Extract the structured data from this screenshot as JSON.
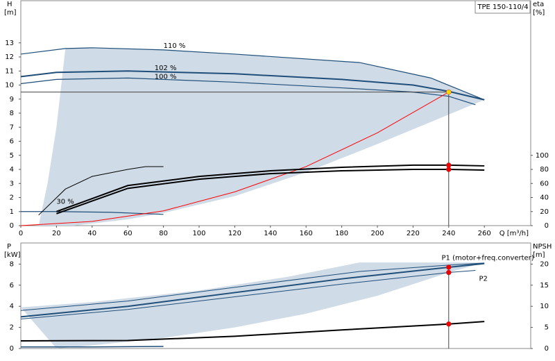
{
  "chart_data": [
    {
      "type": "line",
      "title": "TPE 150-110/4",
      "xlabel": "Q [m³/h]",
      "ylabel": "H",
      "yunit": "[m]",
      "y2label": "eta",
      "y2unit": "[%]",
      "xlim": [
        0,
        286
      ],
      "ylim": [
        0,
        16
      ],
      "y2lim": [
        0,
        320
      ],
      "xticks": [
        0,
        20,
        40,
        60,
        80,
        100,
        120,
        140,
        160,
        180,
        200,
        220,
        240,
        260
      ],
      "yticks": [
        0,
        1,
        2,
        3,
        4,
        5,
        6,
        7,
        8,
        9,
        10,
        11,
        12,
        13
      ],
      "y2ticks": [
        0,
        20,
        40,
        60,
        80,
        100
      ],
      "grid": false,
      "series": [
        {
          "kind": "area",
          "color": "#cad7e4",
          "x": [
            25,
            40,
            80,
            120,
            190,
            230,
            260,
            240,
            200,
            160,
            120,
            80,
            60,
            40,
            30,
            10,
            15,
            20
          ],
          "values": [
            12.6,
            12.65,
            12.5,
            12.2,
            11.6,
            10.5,
            8.95,
            7.9,
            5.8,
            3.8,
            2.1,
            0.9,
            0.45,
            0.15,
            0,
            0,
            3,
            7
          ]
        },
        {
          "kind": "line",
          "color": "#1f4e79",
          "width": 1.2,
          "x": [
            0,
            25,
            40,
            80,
            120,
            190,
            230,
            260
          ],
          "values": [
            12.2,
            12.6,
            12.65,
            12.5,
            12.2,
            11.6,
            10.5,
            8.95
          ]
        },
        {
          "kind": "line",
          "color": "#1f4e79",
          "width": 2,
          "x": [
            0,
            20,
            60,
            120,
            180,
            220,
            240,
            260
          ],
          "values": [
            10.6,
            10.9,
            11.0,
            10.8,
            10.4,
            10.0,
            9.55,
            8.95
          ]
        },
        {
          "kind": "line",
          "color": "#1f4e79",
          "width": 1.2,
          "x": [
            0,
            20,
            60,
            120,
            180,
            220,
            240,
            255
          ],
          "values": [
            10.1,
            10.4,
            10.5,
            10.2,
            9.8,
            9.5,
            9.2,
            8.6
          ]
        },
        {
          "kind": "line",
          "color": "#1f4e79",
          "width": 1.2,
          "x": [
            0,
            20,
            50,
            80
          ],
          "values": [
            1.0,
            1.0,
            0.95,
            0.8
          ]
        },
        {
          "kind": "line",
          "color": "#444444",
          "width": 1,
          "x": [
            0,
            240,
            240
          ],
          "values": [
            9.5,
            9.5,
            0
          ]
        },
        {
          "kind": "line",
          "color": "#ff0000",
          "width": 1,
          "x": [
            0,
            40,
            80,
            120,
            160,
            200,
            240
          ],
          "values": [
            0,
            0.3,
            1.05,
            2.4,
            4.2,
            6.6,
            9.5
          ]
        },
        {
          "kind": "line",
          "axis": "y2",
          "color": "#000000",
          "width": 1,
          "x": [
            10,
            25,
            40,
            60,
            70,
            80
          ],
          "values": [
            15,
            52,
            70,
            80,
            84,
            84
          ]
        },
        {
          "kind": "line",
          "axis": "y2",
          "color": "#000000",
          "width": 2,
          "x": [
            20,
            60,
            100,
            140,
            180,
            220,
            240,
            260
          ],
          "values": [
            20,
            57,
            70,
            78,
            83,
            86,
            86,
            85
          ]
        },
        {
          "kind": "line",
          "axis": "y2",
          "color": "#000000",
          "width": 2,
          "x": [
            20,
            60,
            100,
            140,
            180,
            220,
            240,
            260
          ],
          "values": [
            17,
            53,
            66,
            74,
            78,
            80,
            80,
            79
          ]
        },
        {
          "kind": "points",
          "color": "#ffd700",
          "x": [
            240
          ],
          "values": [
            9.5
          ]
        },
        {
          "kind": "points",
          "axis": "y2",
          "color": "#ee0000",
          "x": [
            240,
            240
          ],
          "values": [
            86,
            80
          ]
        }
      ],
      "annotations": [
        {
          "text": "110 %",
          "x": 80,
          "y": 12.8
        },
        {
          "text": "102 %",
          "x": 75,
          "y": 11.2
        },
        {
          "text": "100 %",
          "x": 75,
          "y": 10.6
        },
        {
          "text": "30 %",
          "x": 20,
          "y": 1.7
        }
      ]
    },
    {
      "type": "line",
      "ylabel": "P",
      "yunit": "[kW]",
      "y2label": "NPSH",
      "y2unit": "[m]",
      "xlim": [
        0,
        286
      ],
      "ylim": [
        0,
        10
      ],
      "y2lim": [
        0,
        25
      ],
      "yticks": [
        0,
        2,
        4,
        6,
        8
      ],
      "y2ticks": [
        0,
        5,
        10,
        15,
        20
      ],
      "grid": false,
      "series": [
        {
          "kind": "area",
          "color": "#cad7e4",
          "x": [
            0,
            40,
            100,
            150,
            190,
            260,
            240,
            200,
            160,
            120,
            80,
            40,
            20
          ],
          "values": [
            3.9,
            4.4,
            5.5,
            6.8,
            8.15,
            8.15,
            7.2,
            5.0,
            3.3,
            2.0,
            1.0,
            0.3,
            0
          ]
        },
        {
          "kind": "line",
          "color": "#1f4e79",
          "width": 1,
          "x": [
            0,
            60,
            120,
            190,
            240,
            260
          ],
          "values": [
            3.6,
            4.5,
            5.8,
            7.3,
            7.9,
            8.1
          ]
        },
        {
          "kind": "line",
          "color": "#1f4e79",
          "width": 2,
          "x": [
            0,
            60,
            120,
            180,
            240,
            260
          ],
          "values": [
            3.0,
            4.0,
            5.3,
            6.6,
            7.7,
            8.05
          ]
        },
        {
          "kind": "line",
          "color": "#1f4e79",
          "width": 1,
          "x": [
            0,
            60,
            120,
            180,
            240,
            255
          ],
          "values": [
            2.8,
            3.7,
            4.9,
            6.1,
            7.2,
            7.4
          ]
        },
        {
          "kind": "line",
          "color": "#1f4e79",
          "width": 1.5,
          "x": [
            0,
            40,
            80
          ],
          "values": [
            0.15,
            0.15,
            0.2
          ]
        },
        {
          "kind": "line",
          "color": "#444444",
          "width": 1,
          "x": [
            240,
            240
          ],
          "values": [
            7.7,
            0
          ]
        },
        {
          "kind": "line",
          "axis": "y2",
          "color": "#000000",
          "width": 2,
          "x": [
            0,
            60,
            120,
            180,
            240,
            260
          ],
          "values": [
            1.8,
            1.9,
            2.9,
            4.4,
            5.8,
            6.4
          ]
        },
        {
          "kind": "points",
          "color": "#ee0000",
          "x": [
            240,
            240
          ],
          "values": [
            7.7,
            7.2
          ]
        },
        {
          "kind": "points",
          "axis": "y2",
          "color": "#ee0000",
          "x": [
            240
          ],
          "values": [
            5.8
          ]
        }
      ],
      "annotations": [
        {
          "text": "P1 (motor+freq.converter)",
          "x": 236,
          "y": 8.6
        },
        {
          "text": "P2",
          "x": 257,
          "y": 6.6
        }
      ]
    }
  ]
}
